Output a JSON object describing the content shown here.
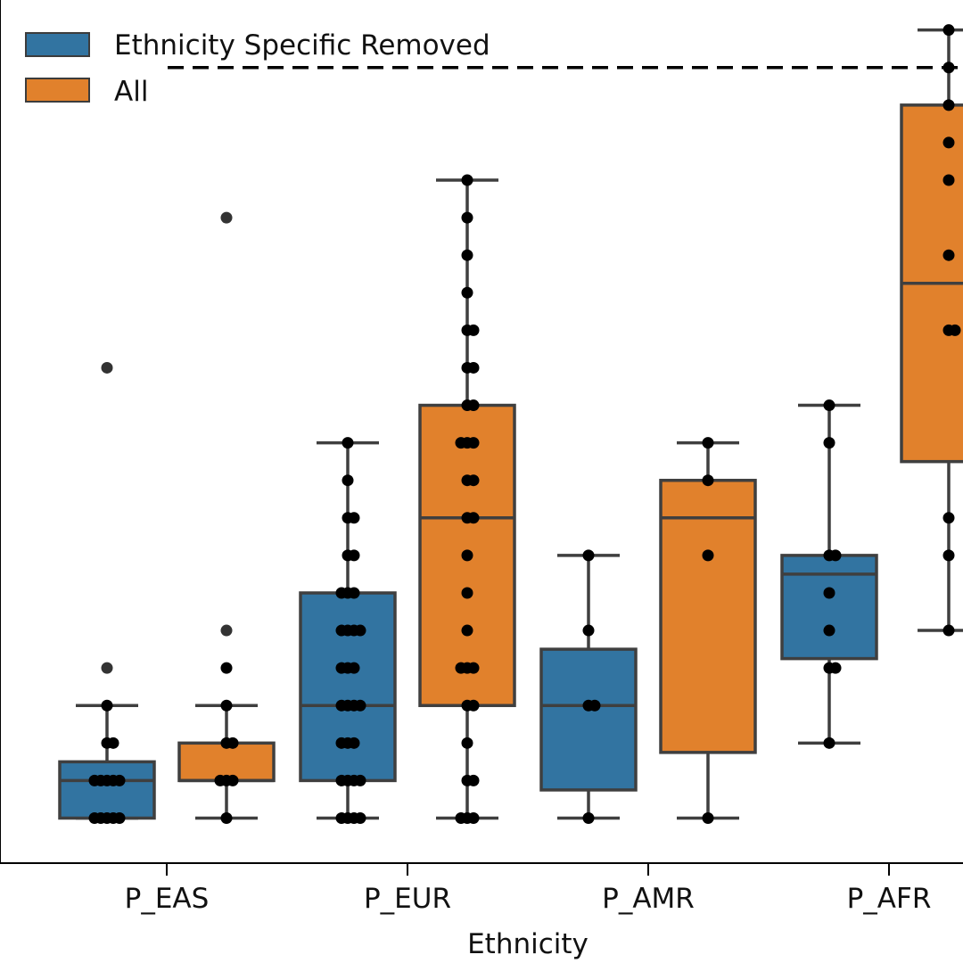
{
  "chart_data": {
    "type": "box",
    "title": "",
    "xlabel": "Ethnicity",
    "ylabel": "",
    "categories": [
      "P_EAS",
      "P_EUR",
      "P_AMR",
      "P_AFR"
    ],
    "ylim": [
      -1.2,
      21.8
    ],
    "reference_line_y": 20,
    "reference_line_style": "dashed",
    "legend": {
      "position": "top-left"
    },
    "series": [
      {
        "name": "Ethnicity Specific Removed",
        "color": "#3274A1",
        "boxes": [
          {
            "category": "P_EAS",
            "whisker_low": 0,
            "q1": 0,
            "median": 1,
            "q3": 1.5,
            "whisker_high": 3,
            "outliers": [
              12,
              4
            ],
            "points": [
              0,
              0,
              0,
              0,
              0,
              1,
              1,
              1,
              1,
              1,
              2,
              2,
              3
            ]
          },
          {
            "category": "P_EUR",
            "whisker_low": 0,
            "q1": 1,
            "median": 3,
            "q3": 6,
            "whisker_high": 10,
            "points": [
              0,
              0,
              0,
              0,
              1,
              1,
              1,
              1,
              2,
              2,
              2,
              3,
              3,
              3,
              3,
              4,
              4,
              4,
              5,
              5,
              5,
              5,
              6,
              6,
              6,
              7,
              7,
              8,
              8,
              9,
              10
            ]
          },
          {
            "category": "P_AMR",
            "whisker_low": 0,
            "q1": 0.75,
            "median": 3,
            "q3": 4.5,
            "whisker_high": 7,
            "points": [
              0,
              3,
              3,
              5,
              7
            ]
          },
          {
            "category": "P_AFR",
            "whisker_low": 2,
            "q1": 4.25,
            "median": 6.5,
            "q3": 7,
            "whisker_high": 11,
            "points": [
              2,
              4,
              4,
              5,
              6,
              7,
              7,
              10,
              11
            ]
          }
        ]
      },
      {
        "name": "All",
        "color": "#E1812C",
        "boxes": [
          {
            "category": "P_EAS",
            "whisker_low": 0,
            "q1": 1,
            "median": 1,
            "q3": 2,
            "whisker_high": 3,
            "outliers": [
              16,
              5
            ],
            "points": [
              0,
              1,
              1,
              1,
              2,
              2,
              3,
              4
            ]
          },
          {
            "category": "P_EUR",
            "whisker_low": 0,
            "q1": 3,
            "median": 8,
            "q3": 11,
            "whisker_high": 17,
            "points": [
              0,
              0,
              0,
              1,
              1,
              2,
              3,
              3,
              4,
              4,
              4,
              5,
              6,
              7,
              8,
              8,
              9,
              9,
              10,
              10,
              10,
              11,
              11,
              12,
              12,
              13,
              13,
              14,
              15,
              16,
              17
            ]
          },
          {
            "category": "P_AMR",
            "whisker_low": 0,
            "q1": 1.75,
            "median": 8,
            "q3": 9,
            "whisker_high": 10,
            "points": [
              0,
              7,
              9,
              10
            ]
          },
          {
            "category": "P_AFR",
            "whisker_low": 5,
            "q1": 9.5,
            "median": 14.25,
            "q3": 19,
            "whisker_high": 21,
            "points": [
              5,
              7,
              8,
              13,
              13,
              15,
              17,
              18,
              19,
              20,
              21
            ]
          }
        ]
      }
    ]
  }
}
